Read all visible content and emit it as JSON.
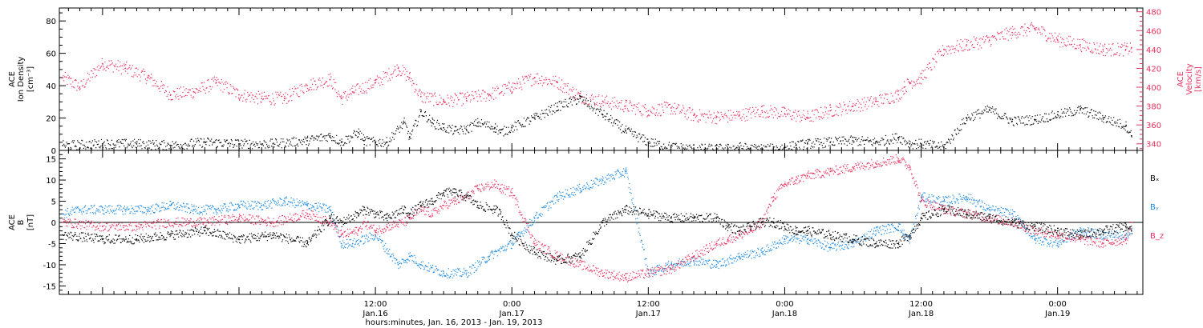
{
  "colors": {
    "black": "#000000",
    "blue": "#1f8ae0",
    "pink": "#e8325f"
  },
  "figure": {
    "xlabel": "hours:minutes, Jan. 16, 2013 - Jan. 19, 2013"
  },
  "chart_data": [
    {
      "type": "scatter",
      "panel": "top",
      "ylabel_left": [
        "ACE",
        "Ion Density",
        "[cm⁻³]"
      ],
      "ylabel_right": [
        "ACE",
        "Velocity",
        "[km/s]"
      ],
      "y_left_lim": [
        0,
        88
      ],
      "y_left_ticks": [
        "0",
        "20",
        "40",
        "60",
        "80"
      ],
      "y_right_lim": [
        333,
        484
      ],
      "y_right_ticks": [
        "340",
        "360",
        "380",
        "400",
        "420",
        "440",
        "460",
        "480"
      ],
      "x_hours_lim": [
        -15.8,
        79.5
      ],
      "series": [
        {
          "name": "",
          "axis": "left",
          "color": "black",
          "x_hours": [
            -15.5,
            -12,
            -9,
            -6,
            -3,
            0,
            3,
            6,
            8,
            9,
            10.5,
            11,
            12,
            13,
            14.5,
            15,
            16,
            17,
            18,
            19,
            20,
            21,
            22.5,
            23,
            24,
            26,
            28,
            30,
            32,
            34,
            36,
            38,
            40,
            42,
            43,
            44,
            45,
            46,
            47,
            48,
            49,
            50,
            52,
            54,
            56,
            58,
            59,
            60,
            62,
            64,
            66,
            68,
            70,
            72,
            74,
            76,
            78,
            78.5
          ],
          "y": [
            3,
            4,
            4,
            3,
            5,
            4,
            4,
            6,
            9,
            5,
            11,
            6,
            5,
            5,
            17,
            8,
            24,
            17,
            14,
            12,
            13,
            17,
            14,
            11,
            14,
            20,
            27,
            32,
            22,
            12,
            5,
            2,
            1,
            1,
            1,
            2,
            1,
            1,
            1,
            2,
            3,
            4,
            5,
            6,
            5,
            8,
            4,
            4,
            2,
            20,
            25,
            18,
            19,
            22,
            25,
            20,
            15,
            9
          ]
        },
        {
          "name": "",
          "axis": "right",
          "color": "pink",
          "x_hours": [
            -15.5,
            -14,
            -12,
            -10,
            -8,
            -6,
            -4,
            -2,
            0,
            2,
            4,
            6,
            8,
            9,
            10,
            12,
            14,
            15,
            16,
            18,
            20,
            22,
            24,
            26,
            28,
            30,
            32,
            34,
            36,
            38,
            40,
            42,
            44,
            46,
            48,
            50,
            52,
            54,
            56,
            58,
            58.5,
            59,
            60,
            62,
            64,
            66,
            68,
            70,
            72,
            74,
            76,
            78,
            78.5
          ],
          "y": [
            410,
            400,
            425,
            420,
            410,
            392,
            395,
            405,
            392,
            388,
            388,
            402,
            408,
            388,
            395,
            405,
            420,
            410,
            390,
            385,
            388,
            392,
            400,
            410,
            405,
            390,
            385,
            380,
            375,
            378,
            370,
            368,
            370,
            375,
            372,
            368,
            375,
            380,
            385,
            392,
            400,
            405,
            410,
            440,
            445,
            450,
            458,
            462,
            450,
            445,
            440,
            440,
            442
          ]
        }
      ]
    },
    {
      "type": "scatter",
      "panel": "bottom",
      "ylabel_left": [
        "ACE",
        "B",
        "[nT]"
      ],
      "y_lim": [
        -17,
        17
      ],
      "y_ticks": [
        "-15",
        "-10",
        "-5",
        "0",
        "5",
        "10",
        "15"
      ],
      "x_hours_lim": [
        -15.8,
        79.5
      ],
      "series": [
        {
          "name": "Bₓ",
          "color": "black",
          "x_hours": [
            -15.5,
            -12,
            -9,
            -6,
            -3,
            0,
            3,
            6,
            8,
            9,
            10.5,
            11,
            12,
            13,
            14.5,
            15,
            16,
            17,
            18,
            19,
            20,
            21,
            22.5,
            23,
            24,
            26,
            28,
            30,
            32,
            34,
            36,
            38,
            40,
            42,
            43,
            44,
            45,
            46,
            47,
            48,
            49,
            50,
            52,
            54,
            56,
            58,
            59,
            60,
            62,
            64,
            66,
            68,
            70,
            72,
            74,
            76,
            78,
            78.5
          ],
          "y": [
            -3,
            -4,
            -4,
            -3,
            -2,
            -4,
            -3,
            -5,
            1,
            0,
            2,
            3,
            2,
            1,
            3,
            2,
            4,
            5,
            7,
            7,
            6,
            4,
            3,
            2,
            -3,
            -7,
            -9,
            -8,
            0,
            3,
            2,
            1,
            1,
            1,
            -1,
            -2,
            -1,
            0,
            0,
            -1,
            -2,
            -2,
            -3,
            -4,
            -5,
            -5,
            -3,
            1,
            3,
            2,
            1,
            0,
            -1,
            -2,
            -3,
            -2,
            -1,
            -2
          ]
        },
        {
          "name": "Bᵧ",
          "color": "blue",
          "x_hours": [
            -15.5,
            -14,
            -12,
            -10,
            -8,
            -6,
            -4,
            -2,
            0,
            2,
            4,
            6,
            8,
            9,
            10,
            12,
            14,
            15,
            16,
            18,
            20,
            22,
            24,
            26,
            28,
            30,
            32,
            34,
            36,
            38,
            40,
            42,
            44,
            46,
            48,
            50,
            52,
            54,
            56,
            58,
            58.5,
            59,
            60,
            62,
            64,
            66,
            68,
            70,
            72,
            74,
            76,
            78,
            78.5
          ],
          "y": [
            2,
            3,
            3,
            3,
            3,
            4,
            3,
            3,
            4,
            4,
            5,
            4,
            3,
            -5,
            -5,
            -3,
            -10,
            -8,
            -10,
            -12,
            -12,
            -8,
            -5,
            1,
            6,
            8,
            10,
            12,
            -12,
            -10,
            -9,
            -10,
            -8,
            -7,
            -4,
            -4,
            -6,
            -5,
            -2,
            -1,
            -3,
            -4,
            6,
            5,
            6,
            3,
            2,
            -4,
            -5,
            -2,
            -3,
            -3,
            -2
          ]
        },
        {
          "name": "B_z",
          "color": "pink",
          "x_hours": [
            -15.5,
            -12,
            -9,
            -6,
            -3,
            0,
            3,
            6,
            8,
            9,
            10.5,
            11,
            12,
            13,
            14.5,
            15,
            16,
            17,
            18,
            19,
            20,
            21,
            22.5,
            23,
            24,
            26,
            28,
            30,
            32,
            34,
            36,
            38,
            40,
            42,
            43,
            44,
            45,
            46,
            47,
            48,
            49,
            50,
            52,
            54,
            56,
            58,
            59,
            60,
            62,
            64,
            66,
            68,
            70,
            72,
            74,
            76,
            78,
            78.5
          ],
          "y": [
            0,
            -1,
            -1,
            0,
            0,
            1,
            0,
            2,
            0,
            -3,
            -2,
            0,
            -2,
            -1,
            0,
            1,
            3,
            2,
            4,
            5,
            6,
            8,
            9,
            8,
            7,
            -5,
            -8,
            -10,
            -12,
            -13,
            -12,
            -11,
            -8,
            -5,
            -4,
            -3,
            -2,
            0,
            6,
            9,
            10,
            11,
            12,
            13,
            14,
            15,
            13,
            5,
            3,
            2,
            1,
            0,
            -2,
            -3,
            -4,
            -5,
            -4,
            0
          ]
        }
      ]
    }
  ],
  "x_axis": {
    "ticks": [
      {
        "hours": 12,
        "time": "12:00",
        "date": "Jan.16"
      },
      {
        "hours": 24,
        "time": "0:00",
        "date": "Jan.17"
      },
      {
        "hours": 36,
        "time": "12:00",
        "date": "Jan.17"
      },
      {
        "hours": 48,
        "time": "0:00",
        "date": "Jan.18"
      },
      {
        "hours": 60,
        "time": "12:00",
        "date": "Jan.18"
      },
      {
        "hours": 72,
        "time": "0:00",
        "date": "Jan.19"
      }
    ]
  }
}
